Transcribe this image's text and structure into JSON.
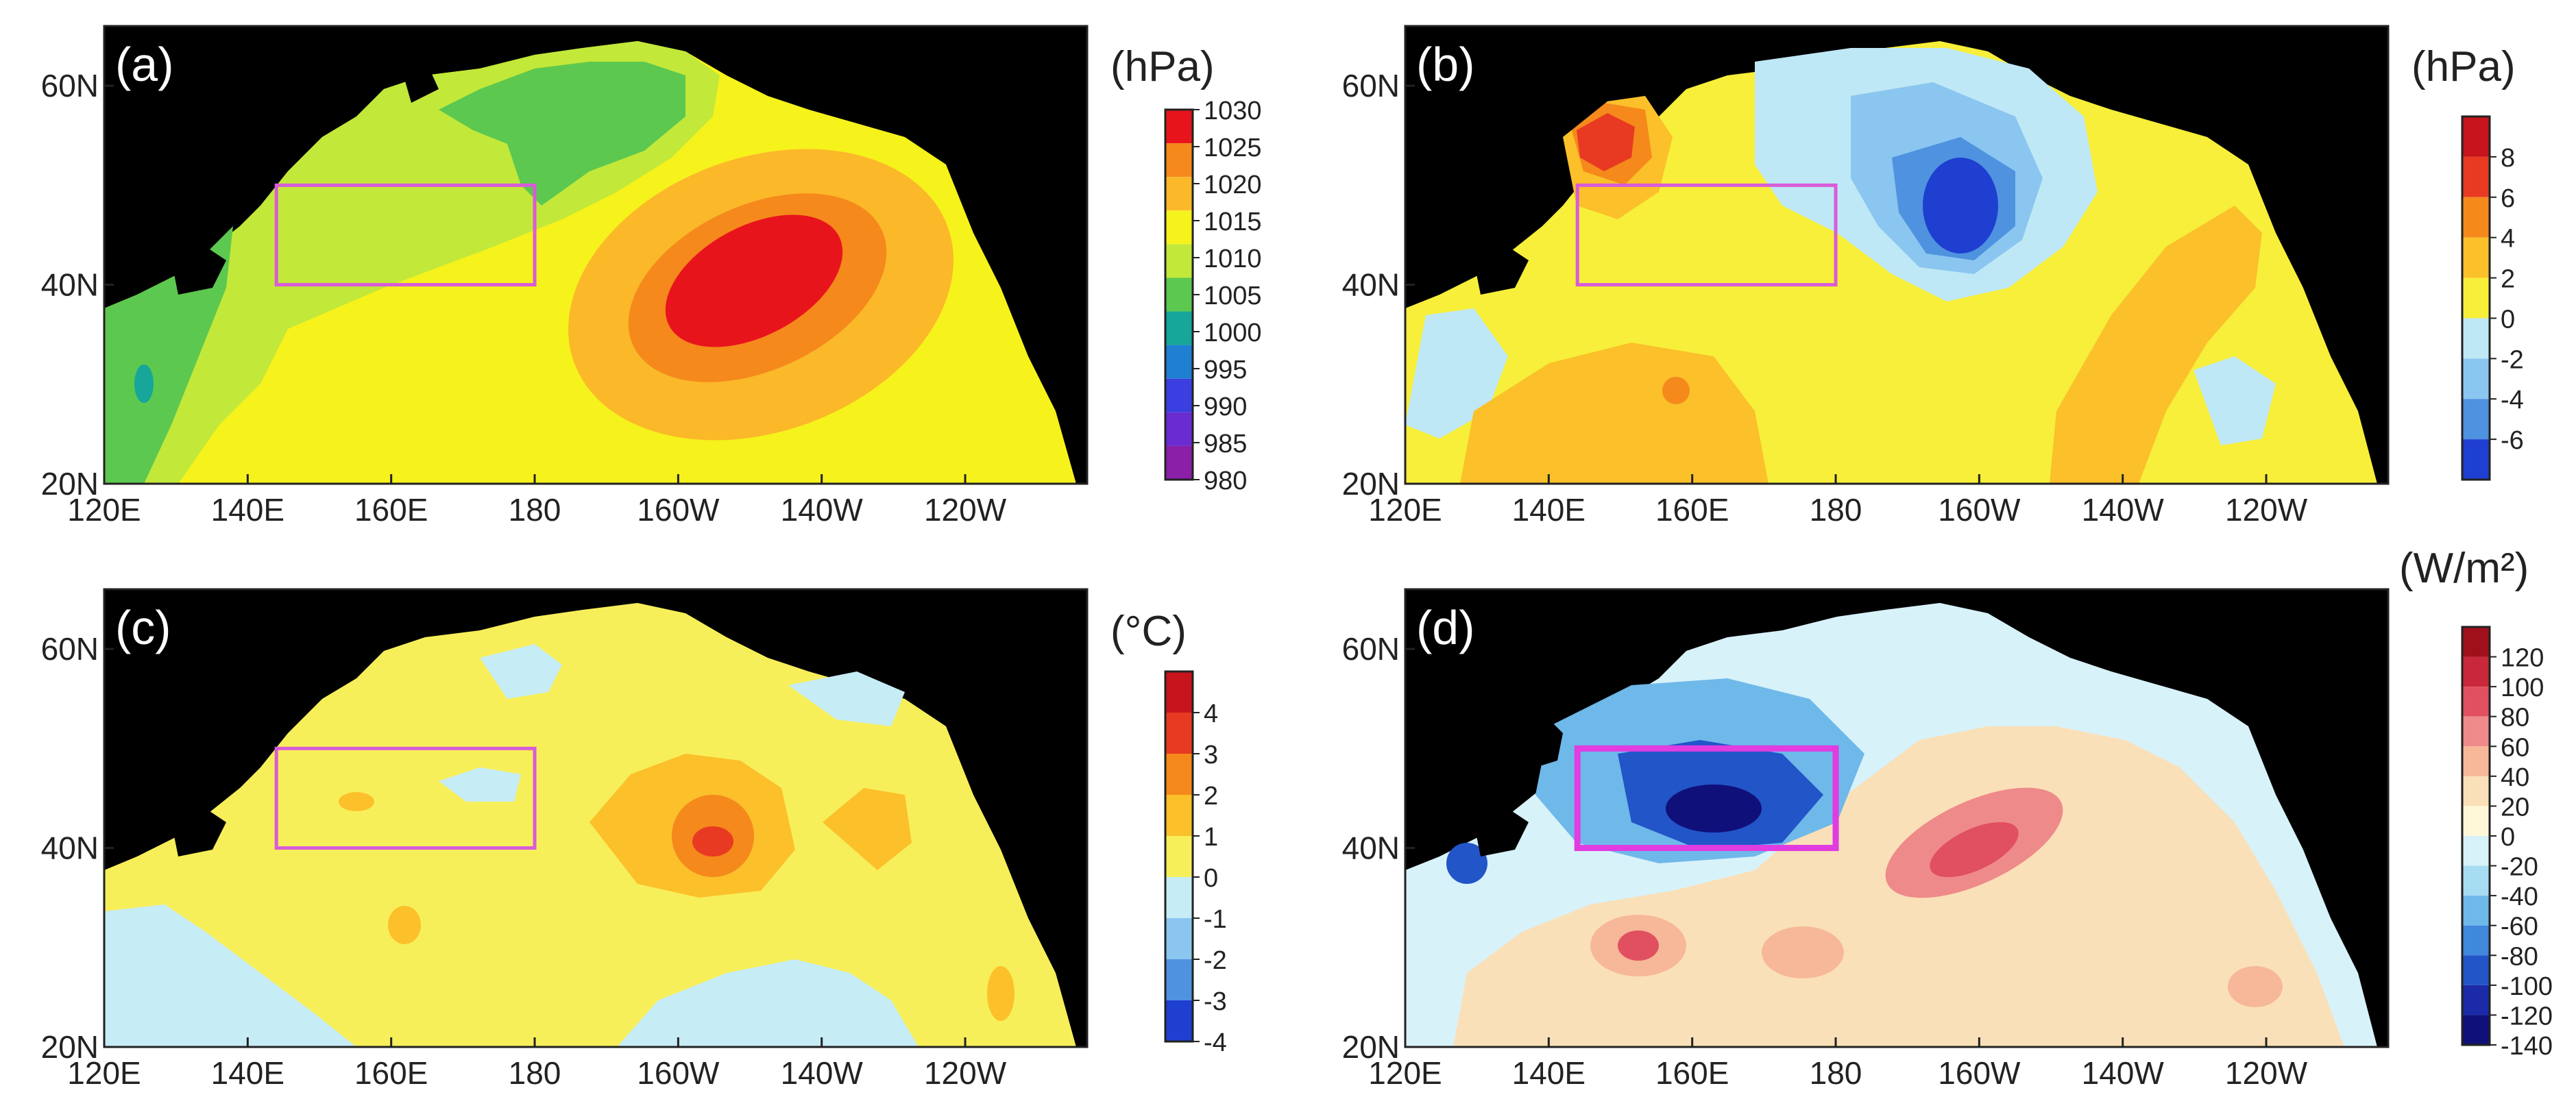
{
  "figure": {
    "x_ticks": [
      "120E",
      "140E",
      "160E",
      "180",
      "160W",
      "140W",
      "120W"
    ],
    "y_ticks": [
      "20N",
      "40N",
      "60N"
    ]
  },
  "panels": [
    {
      "id": "a",
      "label": "(a)",
      "units": "(hPa)",
      "colorbar_levels": [
        "1030",
        "1025",
        "1020",
        "1015",
        "1010",
        "1005",
        "1000",
        "995",
        "990",
        "985",
        "980"
      ],
      "colorbar_colors": [
        "#e8141c",
        "#f5891c",
        "#fbb829",
        "#f6f21c",
        "#c2e83a",
        "#5cc84f",
        "#16a69a",
        "#1f7fd0",
        "#3b3ee0",
        "#6a2cd0",
        "#8b1fa8"
      ],
      "box": {
        "lon": [
          144,
          180
        ],
        "lat": [
          40,
          50
        ],
        "color": "#d85cd8"
      }
    },
    {
      "id": "b",
      "label": "(b)",
      "units": "(hPa)",
      "colorbar_levels": [
        "8",
        "6",
        "4",
        "2",
        "0",
        "-2",
        "-4",
        "-6"
      ],
      "colorbar_colors": [
        "#c8141c",
        "#e83a22",
        "#f5891c",
        "#fbc02a",
        "#f7ef3a",
        "#bfe8f6",
        "#8ac6ef",
        "#4f92e0",
        "#1f3fd0"
      ],
      "box": {
        "lon": [
          144,
          180
        ],
        "lat": [
          40,
          50
        ],
        "color": "#d85cd8"
      }
    },
    {
      "id": "c",
      "label": "(c)",
      "units": "(°C)",
      "colorbar_levels": [
        "4",
        "3",
        "2",
        "1",
        "0",
        "-1",
        "-2",
        "-3",
        "-4"
      ],
      "colorbar_colors": [
        "#c8141c",
        "#e83a22",
        "#f5891c",
        "#fbc02a",
        "#f7ef5a",
        "#c6ecf6",
        "#8ac6ef",
        "#4f92e0",
        "#1f3fd0"
      ],
      "box": {
        "lon": [
          144,
          180
        ],
        "lat": [
          40,
          50
        ],
        "color": "#d85cd8"
      }
    },
    {
      "id": "d",
      "label": "(d)",
      "units": "(W/m²)",
      "colorbar_levels": [
        "120",
        "100",
        "80",
        "60",
        "40",
        "20",
        "0",
        "-20",
        "-40",
        "-60",
        "-80",
        "-100",
        "-120",
        "-140"
      ],
      "colorbar_colors": [
        "#a0101c",
        "#c8283a",
        "#e05060",
        "#ee8a8a",
        "#f6b898",
        "#fae0b8",
        "#fff8d8",
        "#d8f2fa",
        "#a8dcf2",
        "#6fb8ea",
        "#3f88dc",
        "#2255c8",
        "#1a2aa8",
        "#10107a"
      ],
      "box": {
        "lon": [
          144,
          180
        ],
        "lat": [
          40,
          50
        ],
        "color": "#e03ce0"
      }
    }
  ]
}
